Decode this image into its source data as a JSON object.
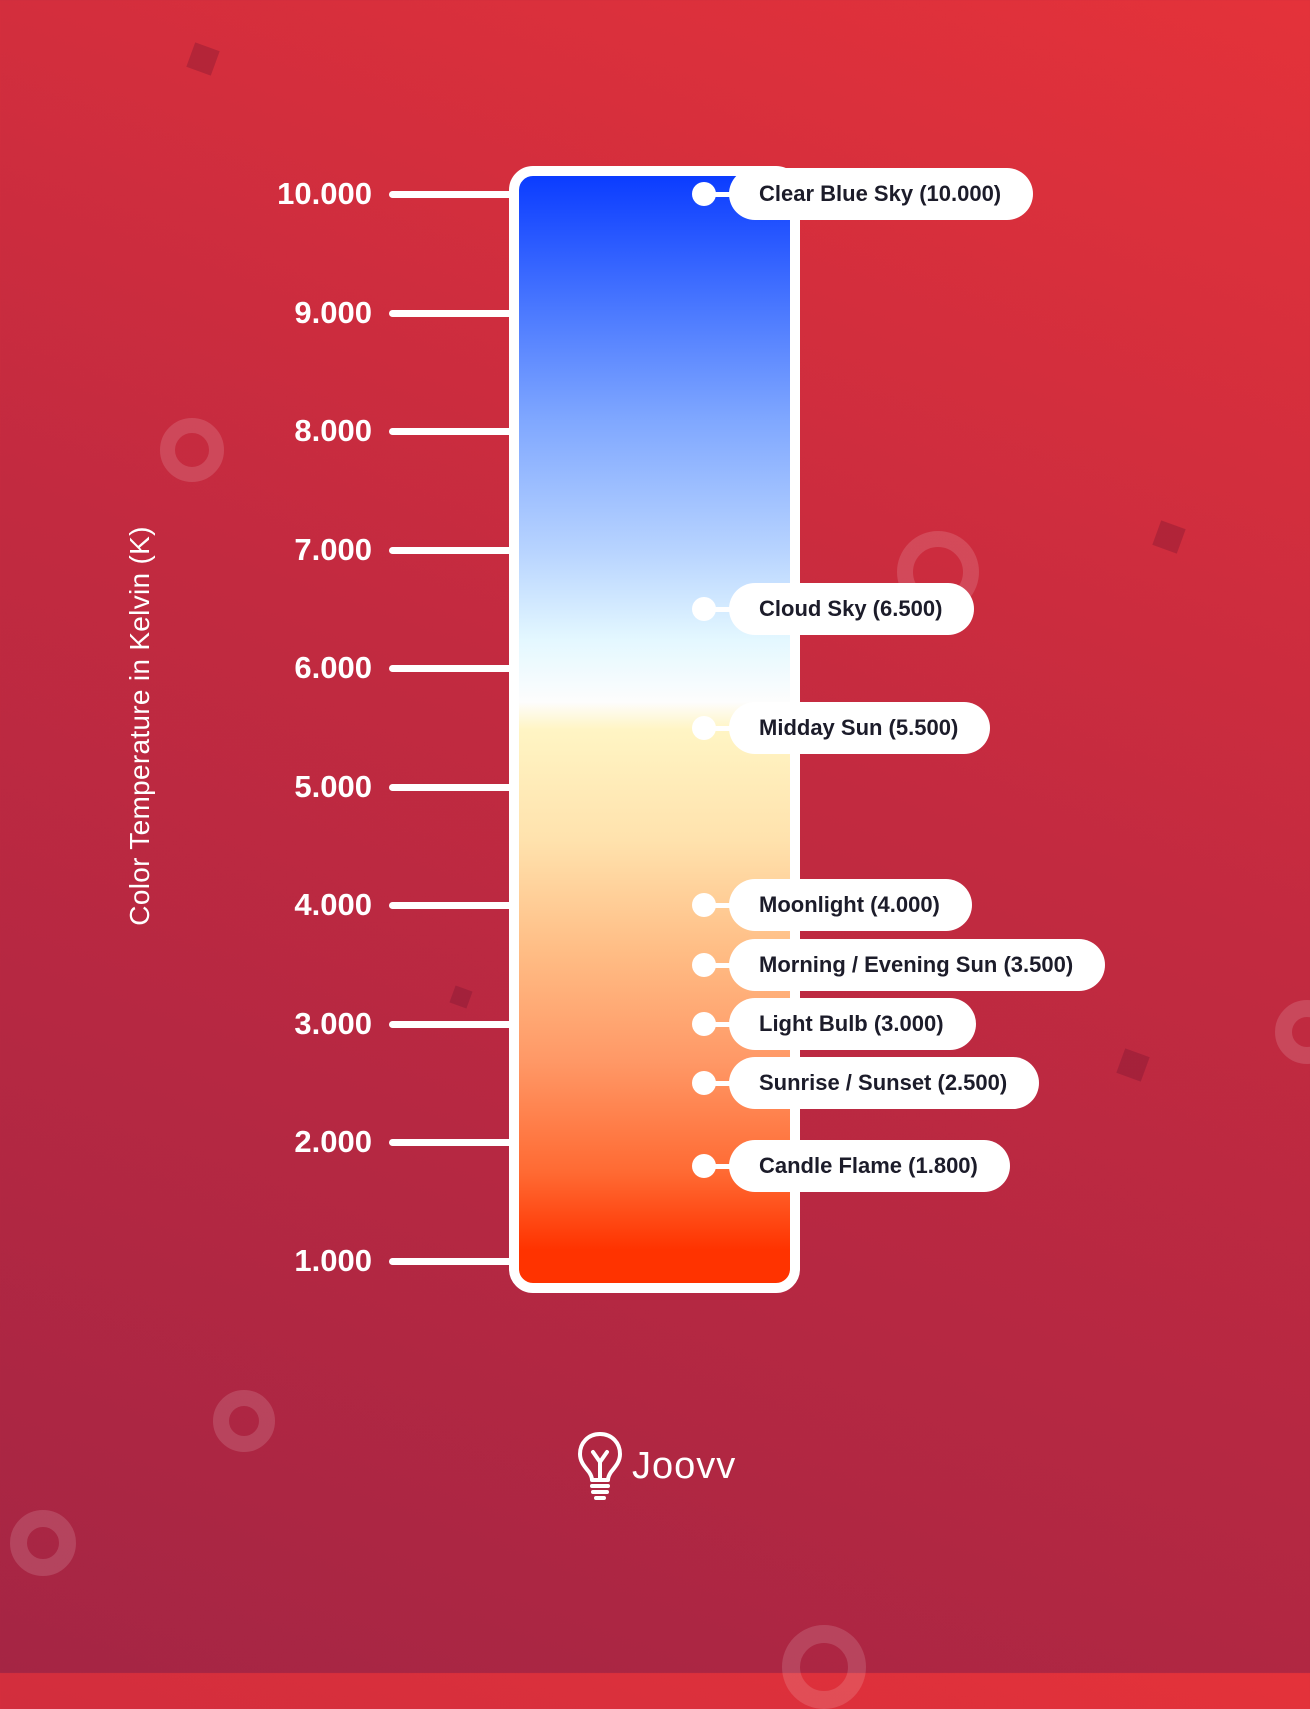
{
  "chart_data": {
    "type": "scale",
    "ylabel": "Color Temperature in Kelvin (K)",
    "yunit": "K",
    "ylim": [
      1000,
      10000
    ],
    "ticks": [
      {
        "value": 10000,
        "label": "10.000"
      },
      {
        "value": 9000,
        "label": "9.000"
      },
      {
        "value": 8000,
        "label": "8.000"
      },
      {
        "value": 7000,
        "label": "7.000"
      },
      {
        "value": 6000,
        "label": "6.000"
      },
      {
        "value": 5000,
        "label": "5.000"
      },
      {
        "value": 4000,
        "label": "4.000"
      },
      {
        "value": 3000,
        "label": "3.000"
      },
      {
        "value": 2000,
        "label": "2.000"
      },
      {
        "value": 1000,
        "label": "1.000"
      }
    ],
    "annotations": [
      {
        "label": "Clear Blue Sky (10.000)",
        "value": 10000
      },
      {
        "label": "Cloud Sky (6.500)",
        "value": 6500
      },
      {
        "label": "Midday Sun (5.500)",
        "value": 5500
      },
      {
        "label": "Moonlight (4.000)",
        "value": 4000
      },
      {
        "label": "Morning / Evening Sun (3.500)",
        "value": 3500
      },
      {
        "label": "Light Bulb (3.000)",
        "value": 3000
      },
      {
        "label": "Sunrise / Sunset (2.500)",
        "value": 2500
      },
      {
        "label": "Candle Flame (1.800)",
        "value": 1800
      }
    ],
    "colors": {
      "high_end": "#0b3cff",
      "mid": "#fdfdfd",
      "low_end": "#ff3300"
    }
  },
  "brand": {
    "name": "Joovv",
    "icon": "lightbulb-icon"
  },
  "colors": {
    "background_top": "#e4323a",
    "background_bottom": "#a52544",
    "foreground": "#ffffff",
    "label_text": "#1c1c2a"
  }
}
